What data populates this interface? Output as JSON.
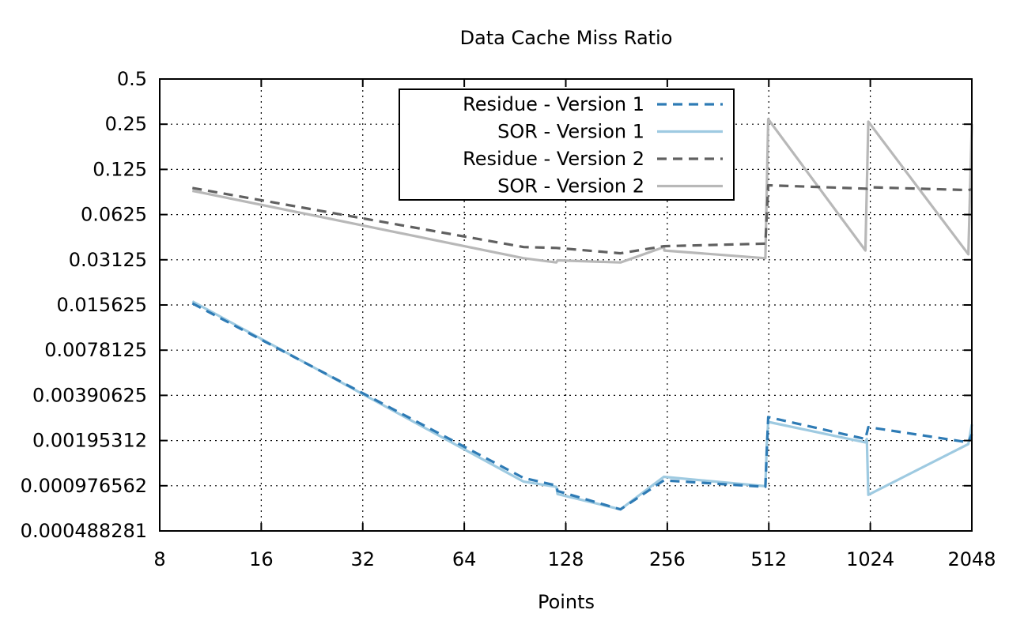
{
  "chart_data": {
    "type": "line",
    "title": "Data Cache Miss Ratio",
    "xlabel": "Points",
    "ylabel": "",
    "x_scale": "log2",
    "y_scale": "log2",
    "xlim": [
      8,
      2048
    ],
    "ylim": [
      0.000488281,
      0.5
    ],
    "x_ticks": [
      "8",
      "16",
      "32",
      "64",
      "128",
      "256",
      "512",
      "1024",
      "2048"
    ],
    "y_ticks": [
      "0.5",
      "0.25",
      "0.125",
      "0.0625",
      "0.03125",
      "0.015625",
      "0.0078125",
      "0.00390625",
      "0.00195312",
      "0.000976562",
      "0.000488281"
    ],
    "grid": true,
    "legend_position": "top-center",
    "series": [
      {
        "name": "Residue - Version 1",
        "color": "#2e7bb5",
        "dash": "dashed",
        "points": [
          [
            10,
            0.016
          ],
          [
            96,
            0.0011
          ],
          [
            120,
            0.00098
          ],
          [
            121,
            0.0009
          ],
          [
            186,
            0.00068
          ],
          [
            250,
            0.00106
          ],
          [
            500,
            0.00096
          ],
          [
            510,
            0.0028
          ],
          [
            990,
            0.002
          ],
          [
            1010,
            0.0024
          ],
          [
            2000,
            0.0019
          ],
          [
            2048,
            0.00215
          ]
        ]
      },
      {
        "name": "SOR - Version 1",
        "color": "#9ecae1",
        "dash": "solid",
        "points": [
          [
            10,
            0.0165
          ],
          [
            96,
            0.00104
          ],
          [
            120,
            0.00096
          ],
          [
            121,
            0.00086
          ],
          [
            186,
            0.00068
          ],
          [
            250,
            0.00112
          ],
          [
            500,
            0.00097
          ],
          [
            505,
            0.00185
          ],
          [
            510,
            0.0026
          ],
          [
            990,
            0.0019
          ],
          [
            1000,
            0.002
          ],
          [
            1010,
            0.00085
          ],
          [
            2000,
            0.00185
          ],
          [
            2048,
            0.0025
          ]
        ]
      },
      {
        "name": "Residue - Version 2",
        "color": "#606060",
        "dash": "dashed",
        "points": [
          [
            10,
            0.094
          ],
          [
            96,
            0.038
          ],
          [
            120,
            0.0375
          ],
          [
            186,
            0.0345
          ],
          [
            250,
            0.0385
          ],
          [
            500,
            0.04
          ],
          [
            510,
            0.098
          ],
          [
            1000,
            0.093
          ],
          [
            1020,
            0.095
          ],
          [
            2000,
            0.091
          ],
          [
            2048,
            0.092
          ]
        ]
      },
      {
        "name": "SOR - Version 2",
        "color": "#b8b8b8",
        "dash": "solid",
        "points": [
          [
            10,
            0.09
          ],
          [
            96,
            0.032
          ],
          [
            120,
            0.03
          ],
          [
            121,
            0.031
          ],
          [
            186,
            0.03
          ],
          [
            250,
            0.038
          ],
          [
            251,
            0.036
          ],
          [
            500,
            0.032
          ],
          [
            510,
            0.27
          ],
          [
            990,
            0.036
          ],
          [
            1010,
            0.26
          ],
          [
            2000,
            0.034
          ],
          [
            2048,
            0.25
          ]
        ]
      }
    ]
  }
}
